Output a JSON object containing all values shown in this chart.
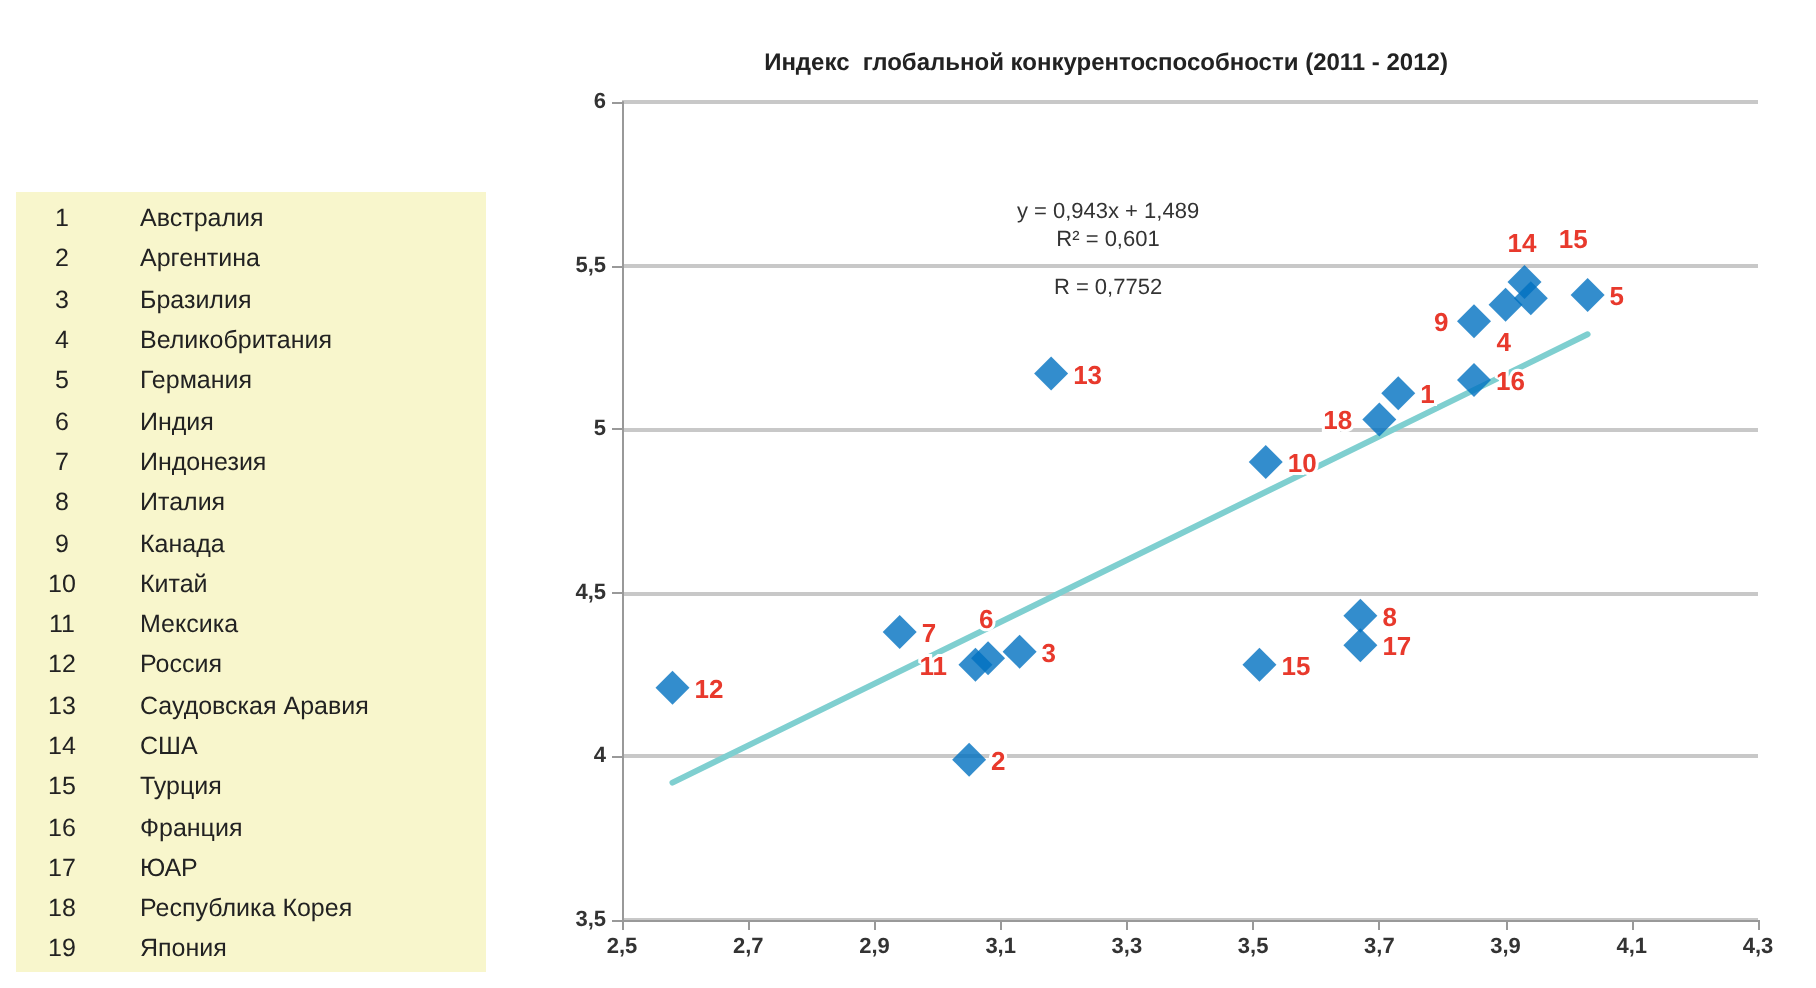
{
  "chart_data": {
    "type": "scatter",
    "title": "Индекс  глобальной конкурентоспособности (2011 - 2012)",
    "x": [
      2.58,
      2.94,
      3.06,
      3.08,
      3.13,
      3.05,
      3.18,
      3.51,
      3.67,
      3.67,
      3.52,
      3.7,
      3.73,
      3.85,
      3.85,
      3.9,
      3.94,
      3.93,
      4.03
    ],
    "series": [
      {
        "color": "#0070c0",
        "marker": "diamond",
        "values": [
          4.21,
          4.38,
          4.28,
          4.3,
          4.32,
          3.99,
          5.17,
          4.28,
          4.43,
          4.34,
          4.9,
          5.03,
          5.11,
          5.15,
          5.33,
          5.38,
          5.4,
          5.45,
          5.41
        ]
      },
      {
        "type": "line",
        "color": "#7fcfd0",
        "marker": "none",
        "line_style": "solid",
        "x": [
          2.58,
          4.03
        ],
        "values": [
          3.92,
          5.29
        ]
      }
    ],
    "xlim": [
      2.5,
      4.3
    ],
    "xticks": [
      {
        "value": 2.5,
        "label": "2,5"
      },
      {
        "value": 2.7,
        "label": "2,7"
      },
      {
        "value": 2.9,
        "label": "2,9"
      },
      {
        "value": 3.1,
        "label": "3,1"
      },
      {
        "value": 3.3,
        "label": "3,3"
      },
      {
        "value": 3.5,
        "label": "3,5"
      },
      {
        "value": 3.7,
        "label": "3,7"
      },
      {
        "value": 3.9,
        "label": "3,9"
      },
      {
        "value": 4.1,
        "label": "4,1"
      },
      {
        "value": 4.3,
        "label": "4,3"
      }
    ],
    "ylim": [
      3.5,
      6
    ],
    "yticks": [
      {
        "value": 3.5,
        "label": "3,5"
      },
      4,
      {
        "value": 4.5,
        "label": "4,5"
      },
      5,
      {
        "value": 5.5,
        "label": "5,5"
      },
      6
    ],
    "grid": "y",
    "annotations": [
      {
        "text": "12",
        "x": 2.58,
        "y": 4.21
      },
      {
        "text": "7",
        "x": 2.94,
        "y": 4.38
      },
      {
        "text": "11",
        "x": 3.06,
        "y": 4.28
      },
      {
        "text": "6",
        "x": 3.08,
        "y": 4.3
      },
      {
        "text": "3",
        "x": 3.13,
        "y": 4.32
      },
      {
        "text": "2",
        "x": 3.05,
        "y": 3.99
      },
      {
        "text": "13",
        "x": 3.18,
        "y": 5.17
      },
      {
        "text": "15",
        "x": 3.51,
        "y": 4.28
      },
      {
        "text": "8",
        "x": 3.67,
        "y": 4.43
      },
      {
        "text": "17",
        "x": 3.67,
        "y": 4.34
      },
      {
        "text": "10",
        "x": 3.52,
        "y": 4.9
      },
      {
        "text": "18",
        "x": 3.7,
        "y": 5.03
      },
      {
        "text": "1",
        "x": 3.73,
        "y": 5.11
      },
      {
        "text": "16",
        "x": 3.85,
        "y": 5.15
      },
      {
        "text": "9",
        "x": 3.85,
        "y": 5.33
      },
      {
        "text": "4",
        "x": 3.9,
        "y": 5.38
      },
      {
        "text": "15",
        "x": 3.94,
        "y": 5.4
      },
      {
        "text": "14",
        "x": 3.93,
        "y": 5.45
      },
      {
        "text": "5",
        "x": 4.03,
        "y": 5.41
      },
      "y = 0,943x + 1,489",
      "R² = 0,601",
      "R = 0,7752",
      "1 Австралия",
      "2 Аргентина",
      "3 Бразилия",
      "4 Великобритания",
      "5 Германия",
      "6 Индия",
      "7 Индонезия",
      "8 Италия",
      "9 Канада",
      "10 Китай",
      "11 Мексика",
      "12 Россия",
      "13 Саудовская Аравия",
      "14 США",
      "15 Турция",
      "16 Франция",
      "17 ЮАР",
      "18 Республика Корея",
      "19 Япония"
    ]
  }
}
